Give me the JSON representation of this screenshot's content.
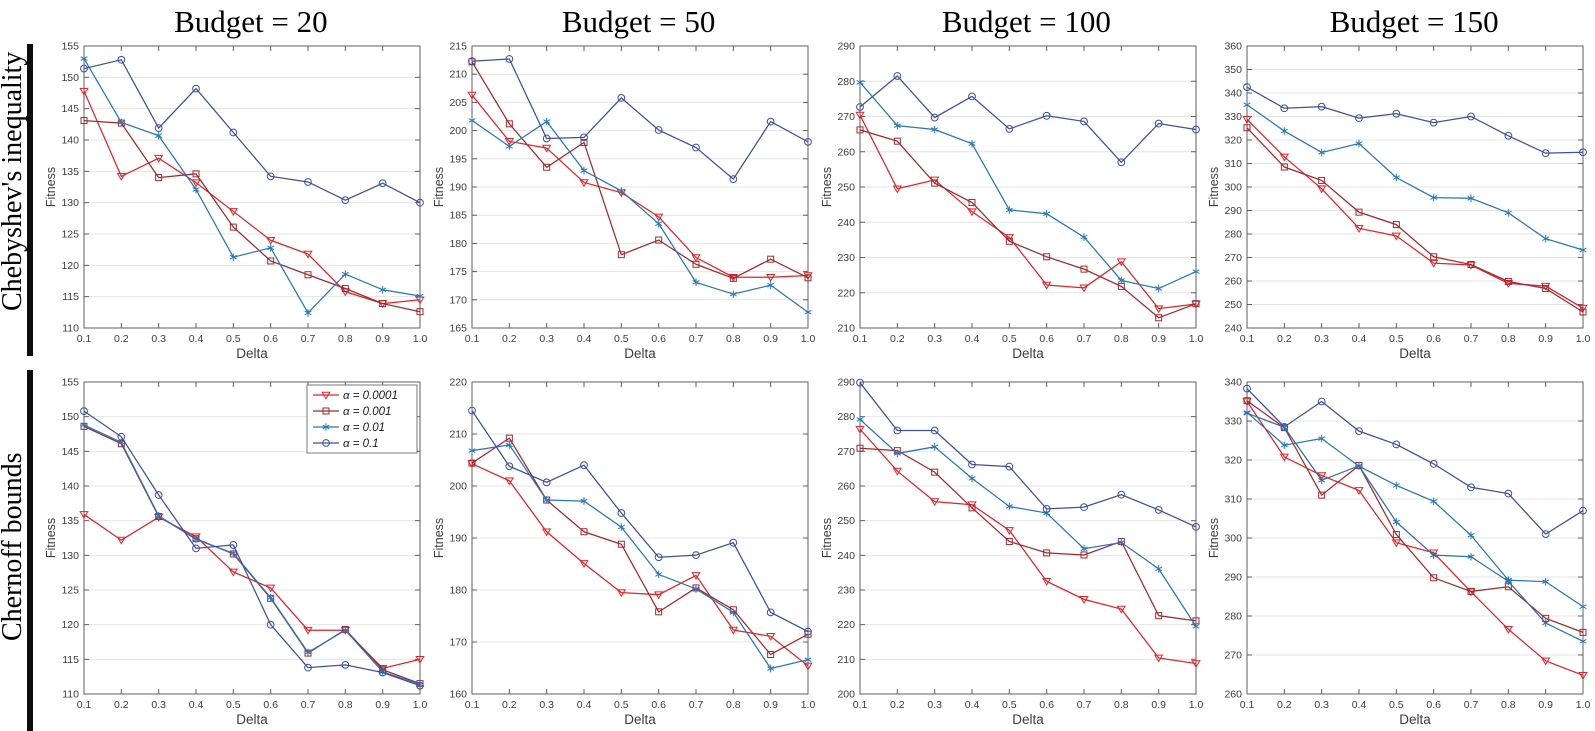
{
  "row_labels": [
    "Chebyshev's inequality",
    "Chernoff bounds"
  ],
  "axes": {
    "xlabel": "Delta",
    "ylabel": "Fitness"
  },
  "colors": {
    "alpha_0_0001": "#e02429",
    "alpha_0_001": "#a1292e",
    "alpha_0_01": "#2777b8",
    "alpha_0_1": "#3e4f9f",
    "unlabeled_blue": "#2d6fae",
    "gridline": "#e4e4e4",
    "axis_box": "#5f5f5f",
    "tick_text": "#3c3c3c"
  },
  "legend": {
    "items": [
      {
        "label": "α = 0.0001",
        "color": "#e02429",
        "marker": "triangle-down"
      },
      {
        "label": "α = 0.001",
        "color": "#a1292e",
        "marker": "square"
      },
      {
        "label": "α = 0.01",
        "color": "#2777b8",
        "marker": "asterisk"
      },
      {
        "label": "α = 0.1",
        "color": "#3e4f9f",
        "marker": "circle"
      }
    ]
  },
  "chart_data": [
    {
      "type": "line",
      "row_group": "Chebyshev's inequality",
      "title": "Budget = 20",
      "xlabel": "Delta",
      "ylabel": "Fitness",
      "x": [
        0.1,
        0.2,
        0.3,
        0.4,
        0.5,
        0.6,
        0.7,
        0.8,
        0.9,
        1.0
      ],
      "ylim": [
        110,
        155
      ],
      "ytick_step": 5,
      "grid": "horizontal",
      "show_legend": false,
      "series": [
        {
          "name": "α = 0.0001",
          "color": "#e02429",
          "marker": "triangle-down",
          "values": [
            147.8,
            134.2,
            137.1,
            133.2,
            128.6,
            124.0,
            121.8,
            115.8,
            113.9,
            114.5
          ]
        },
        {
          "name": "α = 0.001",
          "color": "#a1292e",
          "marker": "square",
          "values": [
            143.1,
            142.7,
            134.0,
            134.6,
            126.1,
            120.7,
            118.5,
            116.3,
            113.9,
            112.6
          ]
        },
        {
          "name": "α = 0.01",
          "color": "#2777b8",
          "marker": "asterisk",
          "values": [
            153.0,
            142.8,
            140.7,
            132.1,
            121.3,
            122.8,
            112.4,
            118.6,
            116.1,
            115.1
          ]
        },
        {
          "name": "α = 0.1",
          "color": "#3e4f9f",
          "marker": "circle",
          "values": [
            151.4,
            152.8,
            141.9,
            148.2,
            141.2,
            134.2,
            133.3,
            130.4,
            133.1,
            130.0
          ]
        }
      ]
    },
    {
      "type": "line",
      "row_group": "Chebyshev's inequality",
      "title": "Budget = 50",
      "xlabel": "Delta",
      "ylabel": "Fitness",
      "x": [
        0.1,
        0.2,
        0.3,
        0.4,
        0.5,
        0.6,
        0.7,
        0.8,
        0.9,
        1.0
      ],
      "ylim": [
        165,
        215
      ],
      "ytick_step": 5,
      "grid": "horizontal",
      "show_legend": false,
      "series": [
        {
          "name": "α = 0.0001",
          "color": "#e02429",
          "marker": "triangle-down",
          "values": [
            206.3,
            198.1,
            196.9,
            190.8,
            189.0,
            184.7,
            177.5,
            174.0,
            174.0,
            174.3
          ]
        },
        {
          "name": "α = 0.001",
          "color": "#a1292e",
          "marker": "square",
          "values": [
            212.2,
            201.2,
            193.5,
            197.9,
            178.0,
            180.6,
            176.3,
            173.8,
            177.2,
            173.9
          ]
        },
        {
          "name": "α = 0.01",
          "color": "#2777b8",
          "marker": "asterisk",
          "values": [
            201.8,
            197.2,
            201.6,
            192.9,
            189.3,
            183.5,
            173.1,
            171.0,
            172.6,
            167.8
          ]
        },
        {
          "name": "α = 0.1",
          "color": "#3e4f9f",
          "marker": "circle",
          "values": [
            212.3,
            212.7,
            198.6,
            198.8,
            205.8,
            200.1,
            197.0,
            191.4,
            201.6,
            198.0
          ]
        }
      ]
    },
    {
      "type": "line",
      "row_group": "Chebyshev's inequality",
      "title": "Budget = 100",
      "xlabel": "Delta",
      "ylabel": "Fitness",
      "x": [
        0.1,
        0.2,
        0.3,
        0.4,
        0.5,
        0.6,
        0.7,
        0.8,
        0.9,
        1.0
      ],
      "ylim": [
        210,
        290
      ],
      "ytick_step": 10,
      "grid": "horizontal",
      "show_legend": false,
      "series": [
        {
          "name": "α = 0.0001",
          "color": "#e02429",
          "marker": "triangle-down",
          "values": [
            270.4,
            249.5,
            252.0,
            243.0,
            235.7,
            222.2,
            221.4,
            228.8,
            215.5,
            216.8
          ]
        },
        {
          "name": "α = 0.001",
          "color": "#a1292e",
          "marker": "square",
          "values": [
            266.2,
            263.0,
            251.1,
            245.6,
            234.6,
            230.2,
            226.7,
            221.8,
            212.9,
            216.9
          ]
        },
        {
          "name": "α = 0.01",
          "color": "#2777b8",
          "marker": "asterisk",
          "values": [
            279.7,
            267.4,
            266.3,
            262.3,
            243.5,
            242.4,
            235.8,
            223.5,
            221.2,
            226.0
          ]
        },
        {
          "name": "α = 0.1",
          "color": "#3e4f9f",
          "marker": "circle",
          "values": [
            272.7,
            281.5,
            269.7,
            275.7,
            266.5,
            270.2,
            268.6,
            257.0,
            268.0,
            266.3
          ]
        }
      ]
    },
    {
      "type": "line",
      "row_group": "Chebyshev's inequality",
      "title": "Budget = 150",
      "xlabel": "Delta",
      "ylabel": "Fitness",
      "x": [
        0.1,
        0.2,
        0.3,
        0.4,
        0.5,
        0.6,
        0.7,
        0.8,
        0.9,
        1.0
      ],
      "ylim": [
        240,
        360
      ],
      "ytick_step": 10,
      "grid": "horizontal",
      "show_legend": false,
      "series": [
        {
          "name": "α = 0.0001",
          "color": "#e02429",
          "marker": "triangle-down",
          "values": [
            328.8,
            312.8,
            299.3,
            282.4,
            279.2,
            267.6,
            266.8,
            259.0,
            257.8,
            248.5
          ]
        },
        {
          "name": "α = 0.001",
          "color": "#a1292e",
          "marker": "square",
          "values": [
            325.2,
            308.5,
            302.8,
            289.3,
            284.0,
            270.3,
            267.0,
            259.8,
            256.8,
            246.8
          ]
        },
        {
          "name": "α = 0.01",
          "color": "#2777b8",
          "marker": "asterisk",
          "values": [
            335.0,
            323.8,
            314.7,
            318.5,
            304.0,
            295.5,
            295.2,
            289.0,
            278.0,
            273.2
          ]
        },
        {
          "name": "α = 0.1",
          "color": "#3e4f9f",
          "marker": "circle",
          "values": [
            342.5,
            333.5,
            334.2,
            329.3,
            331.2,
            327.4,
            330.0,
            321.8,
            314.4,
            314.8
          ]
        }
      ]
    },
    {
      "type": "line",
      "row_group": "Chernoff bounds",
      "title": "",
      "xlabel": "Delta",
      "ylabel": "Fitness",
      "x": [
        0.1,
        0.2,
        0.3,
        0.4,
        0.5,
        0.6,
        0.7,
        0.8,
        0.9,
        1.0
      ],
      "ylim": [
        110,
        155
      ],
      "ytick_step": 5,
      "grid": "horizontal",
      "show_legend": true,
      "series": [
        {
          "name": "α = 0.0001",
          "color": "#e02429",
          "marker": "triangle-down",
          "values": [
            135.9,
            132.2,
            135.5,
            132.7,
            127.6,
            125.3,
            119.2,
            119.2,
            113.7,
            115.0
          ]
        },
        {
          "name": "α = 0.001",
          "color": "#a1292e",
          "marker": "square",
          "values": [
            148.6,
            146.1,
            135.6,
            132.4,
            130.2,
            123.8,
            115.9,
            119.3,
            113.5,
            111.5
          ]
        },
        {
          "name": "α = 0.01",
          "color": "#2777b8",
          "marker": "asterisk",
          "values": [
            148.8,
            146.3,
            135.7,
            132.3,
            130.3,
            123.9,
            116.0,
            119.2,
            113.2,
            111.4
          ]
        },
        {
          "name": "α = 0.1",
          "color": "#3e4f9f",
          "marker": "circle",
          "values": [
            150.8,
            147.1,
            138.7,
            131.0,
            131.5,
            120.0,
            113.8,
            114.2,
            113.1,
            111.2
          ]
        }
      ]
    },
    {
      "type": "line",
      "row_group": "Chernoff bounds",
      "title": "",
      "xlabel": "Delta",
      "ylabel": "Fitness",
      "x": [
        0.1,
        0.2,
        0.3,
        0.4,
        0.5,
        0.6,
        0.7,
        0.8,
        0.9,
        1.0
      ],
      "ylim": [
        160,
        220
      ],
      "ytick_step": 10,
      "grid": "horizontal",
      "show_legend": false,
      "series": [
        {
          "name": "α = 0.0001",
          "color": "#e02429",
          "marker": "triangle-down",
          "values": [
            204.3,
            201.0,
            191.2,
            185.1,
            179.5,
            179.1,
            182.8,
            172.3,
            171.1,
            165.4
          ]
        },
        {
          "name": "α = 0.001",
          "color": "#a1292e",
          "marker": "square",
          "values": [
            204.4,
            209.2,
            197.3,
            191.2,
            188.8,
            175.8,
            180.4,
            176.2,
            167.6,
            171.5
          ]
        },
        {
          "name": "α = 0.01",
          "color": "#2777b8",
          "marker": "asterisk",
          "values": [
            206.8,
            207.9,
            197.3,
            197.1,
            192.1,
            183.0,
            180.2,
            175.7,
            164.9,
            166.6
          ]
        },
        {
          "name": "α = 0.1",
          "color": "#3e4f9f",
          "marker": "circle",
          "values": [
            214.5,
            203.8,
            200.7,
            204.0,
            194.8,
            186.3,
            186.7,
            189.1,
            175.7,
            172.0
          ]
        }
      ]
    },
    {
      "type": "line",
      "row_group": "Chernoff bounds",
      "title": "",
      "xlabel": "Delta",
      "ylabel": "Fitness",
      "x": [
        0.1,
        0.2,
        0.3,
        0.4,
        0.5,
        0.6,
        0.7,
        0.8,
        0.9,
        1.0
      ],
      "ylim": [
        200,
        290
      ],
      "ytick_step": 10,
      "grid": "horizontal",
      "show_legend": false,
      "series": [
        {
          "name": "α = 0.0001",
          "color": "#e02429",
          "marker": "triangle-down",
          "values": [
            276.4,
            264.3,
            255.5,
            254.6,
            247.2,
            232.5,
            227.3,
            224.5,
            210.4,
            208.8
          ]
        },
        {
          "name": "α = 0.001",
          "color": "#a1292e",
          "marker": "square",
          "values": [
            270.9,
            270.2,
            264.0,
            253.7,
            244.0,
            240.7,
            240.1,
            244.0,
            222.6,
            221.1
          ]
        },
        {
          "name": "α = 0.01",
          "color": "#2777b8",
          "marker": "asterisk",
          "values": [
            279.2,
            269.4,
            271.3,
            262.2,
            254.1,
            252.2,
            241.9,
            243.7,
            236.1,
            219.5
          ]
        },
        {
          "name": "α = 0.1",
          "color": "#3e4f9f",
          "marker": "circle",
          "values": [
            289.8,
            276.0,
            276.0,
            266.2,
            265.6,
            253.4,
            253.9,
            257.5,
            253.1,
            248.2
          ]
        }
      ]
    },
    {
      "type": "line",
      "row_group": "Chernoff bounds",
      "title": "",
      "xlabel": "Delta",
      "ylabel": "Fitness",
      "x": [
        0.1,
        0.2,
        0.3,
        0.4,
        0.5,
        0.6,
        0.7,
        0.8,
        0.9,
        1.0
      ],
      "ylim": [
        260,
        340
      ],
      "ytick_step": 10,
      "grid": "horizontal",
      "show_legend": false,
      "series": [
        {
          "name": "α = 0.0001",
          "color": "#e02429",
          "marker": "triangle-down",
          "values": [
            335.0,
            320.8,
            316.0,
            312.2,
            298.8,
            296.2,
            286.2,
            276.6,
            268.5,
            264.8
          ]
        },
        {
          "name": "α = 0.001",
          "color": "#a1292e",
          "marker": "square",
          "values": [
            335.2,
            328.3,
            311.0,
            318.6,
            300.9,
            289.8,
            286.3,
            287.5,
            279.4,
            275.8
          ]
        },
        {
          "name": "α = 0.01",
          "color": "#2777b8",
          "marker": "asterisk",
          "values": [
            332.2,
            323.8,
            325.5,
            318.4,
            313.5,
            309.4,
            300.7,
            289.2,
            288.8,
            282.4
          ]
        },
        {
          "name": "α = 0.1",
          "color": "#3e4f9f",
          "marker": "circle",
          "values": [
            338.3,
            328.5,
            335.0,
            327.4,
            324.0,
            319.0,
            313.0,
            311.4,
            301.0,
            307.0
          ]
        },
        {
          "name": "",
          "color": "#2d6fae",
          "marker": "asterisk",
          "values": [
            332.0,
            328.4,
            314.8,
            318.5,
            304.1,
            295.6,
            295.2,
            288.9,
            278.2,
            273.5
          ]
        }
      ]
    }
  ]
}
